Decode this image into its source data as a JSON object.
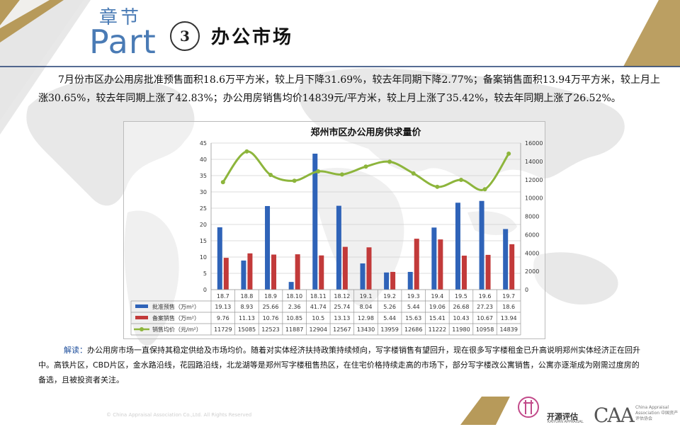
{
  "header": {
    "chapter_cn": "章节",
    "chapter_en": "Part",
    "number": "3",
    "title": "办公市场"
  },
  "paragraph": "7月份市区办公用房批准预售面积18.6万平方米，较上月下降31.69%，较去年同期下降2.77%；备案销售面积13.94万平方米，较上月上涨30.65%，较去年同期上涨了42.83%；办公用房销售均价14839元/平方米，较上月上涨了35.42%，较去年同期上涨了26.52%。",
  "colors": {
    "accent": "#4a7bb5",
    "gold": "#b79a5a",
    "bar_blue": "#2f63b8",
    "bar_red": "#c23a3a",
    "line_green": "#8db53c"
  },
  "chart_data": {
    "type": "bar",
    "title": "郑州市区办公用房供求量价",
    "categories": [
      "18.7",
      "18.8",
      "18.9",
      "18.10",
      "18.11",
      "18.12",
      "19.1",
      "19.2",
      "19.3",
      "19.4",
      "19.5",
      "19.6",
      "19.7"
    ],
    "series": [
      {
        "name": "批准预售（万m²）",
        "type": "bar",
        "axis": "left",
        "values": [
          19.13,
          8.93,
          25.66,
          2.36,
          41.74,
          25.74,
          8.04,
          5.26,
          5.44,
          19.06,
          26.68,
          27.23,
          18.6
        ]
      },
      {
        "name": "备案销售（万m²）",
        "type": "bar",
        "axis": "left",
        "values": [
          9.76,
          11.13,
          10.76,
          10.85,
          10.5,
          13.13,
          12.98,
          5.44,
          15.63,
          15.41,
          10.43,
          10.67,
          13.94
        ]
      },
      {
        "name": "销售均价（元/m²）",
        "type": "line",
        "axis": "right",
        "values": [
          11729,
          15085,
          12523,
          11887,
          12904,
          12567,
          13430,
          13959,
          12686,
          11222,
          11980,
          10958,
          14839
        ]
      }
    ],
    "ylim_left": [
      0,
      45
    ],
    "yticks_left": [
      "0",
      "5",
      "10",
      "15",
      "20",
      "25",
      "30",
      "35",
      "40",
      "45"
    ],
    "ylim_right": [
      0,
      16000
    ],
    "yticks_right": [
      "0",
      "2000",
      "4000",
      "6000",
      "8000",
      "10000",
      "12000",
      "14000",
      "16000"
    ],
    "table_values": {
      "s0": [
        "19.13",
        "8.93",
        "25.66",
        "2.36",
        "41.74",
        "25.74",
        "8.04",
        "5.26",
        "5.44",
        "19.06",
        "26.68",
        "27.23",
        "18.6"
      ],
      "s1": [
        "9.76",
        "11.13",
        "10.76",
        "10.85",
        "10.5",
        "13.13",
        "12.98",
        "5.44",
        "15.63",
        "15.41",
        "10.43",
        "10.67",
        "13.94"
      ],
      "s2": [
        "11729",
        "15085",
        "12523",
        "11887",
        "12904",
        "12567",
        "13430",
        "13959",
        "12686",
        "11222",
        "11980",
        "10958",
        "14839"
      ]
    },
    "grid": true,
    "legend": "data-table"
  },
  "note": {
    "label": "解读：",
    "text": "办公用房市场一直保持其稳定供给及市场均价。随着对实体经济扶持政策持续倾向，写字楼销售有望回升，现在很多写字楼租金已升高说明郑州实体经济正在回升中。高铁片区，CBD片区，金水路沿线，花园路沿线，北龙湖等是郑州写字楼租售热区，在住宅价格持续走高的市场下，部分写字楼改公寓销售，公寓亦逐渐成为刚需过度房的备选，且被投资者关注。"
  },
  "footer": {
    "copyright": "© China Appraisal Association Co.,Ltd. All Rights Reserved",
    "logo1_cn": "开源评估",
    "logo1_en": "KAIYUAN APPRAISAL",
    "logo2": "CAA",
    "logo2_sub": "China Appraisal Association 中国资产评估协会"
  }
}
